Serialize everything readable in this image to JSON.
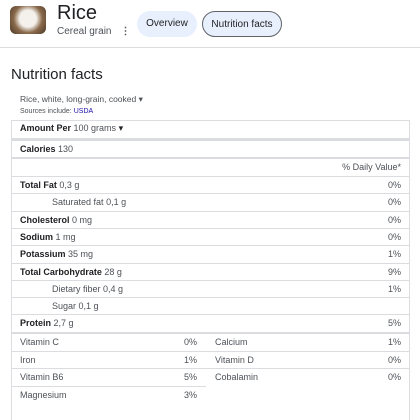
{
  "header": {
    "title": "Rice",
    "subtitle": "Cereal grain",
    "tabs": [
      "Overview",
      "Nutrition facts"
    ]
  },
  "section_title": "Nutrition facts",
  "food_select": "Rice, white, long-grain, cooked",
  "sources": {
    "label": "Sources include:",
    "link": "USDA"
  },
  "serving": {
    "label": "Amount Per",
    "amount": "100 grams"
  },
  "calories": {
    "label": "Calories",
    "value": "130"
  },
  "dv_header": "% Daily Value*",
  "nutrients": [
    {
      "name": "Total Fat",
      "amount": "0,3 g",
      "dv": "0%"
    },
    {
      "name": "Saturated fat",
      "amount": "0,1 g",
      "dv": "0%",
      "indent": true
    },
    {
      "name": "Cholesterol",
      "amount": "0 mg",
      "dv": "0%"
    },
    {
      "name": "Sodium",
      "amount": "1 mg",
      "dv": "0%"
    },
    {
      "name": "Potassium",
      "amount": "35 mg",
      "dv": "1%"
    },
    {
      "name": "Total Carbohydrate",
      "amount": "28 g",
      "dv": "9%"
    },
    {
      "name": "Dietary fiber",
      "amount": "0,4 g",
      "dv": "1%",
      "indent": true
    },
    {
      "name": "Sugar",
      "amount": "0,1 g",
      "indent": true
    },
    {
      "name": "Protein",
      "amount": "2,7 g",
      "dv": "5%"
    }
  ],
  "micronutrients": [
    {
      "name": "Vitamin C",
      "dv": "0%"
    },
    {
      "name": "Calcium",
      "dv": "1%"
    },
    {
      "name": "Iron",
      "dv": "1%"
    },
    {
      "name": "Vitamin D",
      "dv": "0%"
    },
    {
      "name": "Vitamin B6",
      "dv": "5%"
    },
    {
      "name": "Cobalamin",
      "dv": "0%"
    },
    {
      "name": "Magnesium",
      "dv": "3%"
    }
  ]
}
